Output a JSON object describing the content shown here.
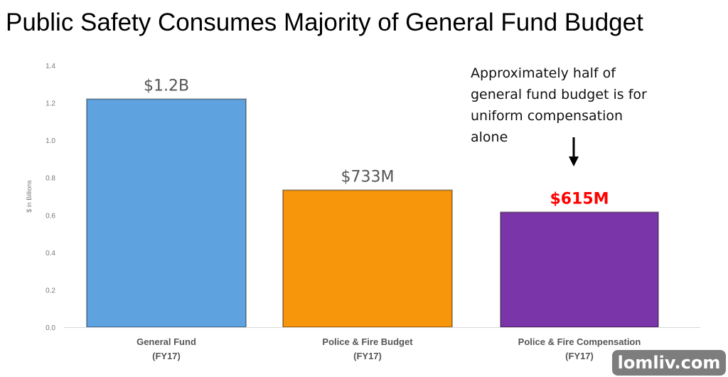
{
  "title": "Public Safety Consumes Majority of General Fund Budget",
  "annotation": "Approximately half of general fund budget is for uniform compensation alone",
  "watermark": "lomliv.com",
  "chart_data": {
    "type": "bar",
    "title": "Public Safety Consumes Majority of General Fund Budget",
    "ylabel": "$ in Billions",
    "xlabel": "",
    "ylim": [
      0,
      1.4
    ],
    "yticks": [
      "0.0",
      "0.2",
      "0.4",
      "0.6",
      "0.8",
      "1.0",
      "1.2",
      "1.4"
    ],
    "grid": false,
    "categories": [
      {
        "line1": "General Fund",
        "line2": "(FY17)"
      },
      {
        "line1": "Police & Fire Budget",
        "line2": "(FY17)"
      },
      {
        "line1": "Police & Fire Compensation",
        "line2": "(FY17)"
      }
    ],
    "values": [
      1.22,
      0.733,
      0.615
    ],
    "data_labels": [
      "$1.2B",
      "$733M",
      "$615M"
    ],
    "colors": [
      "#5ea3e0",
      "#f7960a",
      "#7a35a8"
    ],
    "label_colors": [
      "#555555",
      "#555555",
      "#ff0000"
    ]
  }
}
